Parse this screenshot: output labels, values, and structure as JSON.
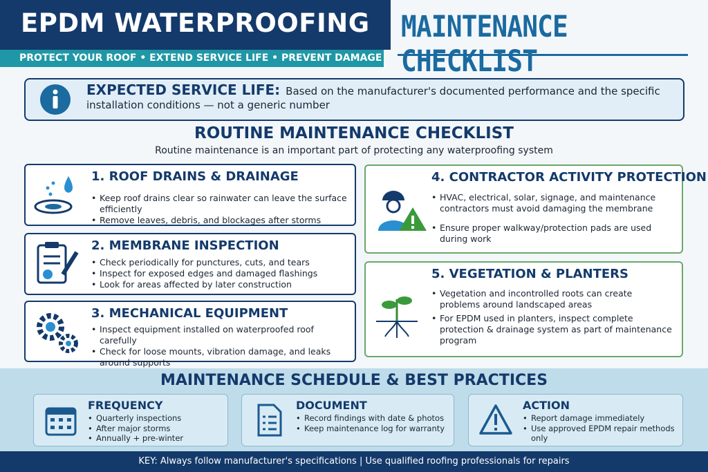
{
  "header": {
    "title": "EPDM WATERPROOFING",
    "subtitle": "PROTECT YOUR ROOF • EXTEND SERVICE LIFE • PREVENT DAMAGE",
    "title_right": "MAINTENANCE CHECKLIST"
  },
  "info": {
    "label": "EXPECTED SERVICE LIFE:",
    "text": "Based on the manufacturer's documented performance and the specific installation conditions — not a generic number"
  },
  "section": {
    "title": "ROUTINE MAINTENANCE CHECKLIST",
    "subtitle": "Routine maintenance is an important part of protecting any waterproofing system"
  },
  "cards": [
    {
      "title": "1. ROOF DRAINS & DRAINAGE",
      "bullets": [
        "Keep roof drains clear so rainwater can leave the surface efficiently",
        "Remove leaves, debris, and blockages after storms"
      ]
    },
    {
      "title": "2. MEMBRANE INSPECTION",
      "bullets": [
        "Check periodically for punctures, cuts, and tears",
        "Inspect for exposed edges and damaged flashings",
        "Look for areas affected by later construction"
      ]
    },
    {
      "title": "3. MECHANICAL EQUIPMENT",
      "bullets": [
        "Inspect equipment installed on waterproofed roof carefully",
        "Check for loose mounts, vibration damage, and leaks around supports"
      ]
    },
    {
      "title": "4. CONTRACTOR ACTIVITY PROTECTION",
      "bullets": [
        "HVAC, electrical, solar, signage, and maintenance contractors must avoid damaging the membrane",
        "Ensure proper walkway/protection pads are used during work"
      ]
    },
    {
      "title": "5. VEGETATION & PLANTERS",
      "bullets": [
        "Vegetation and incontrolled roots can create problems around landscaped areas",
        "For EPDM used in planters, inspect complete protection & drainage system as part of maintenance program"
      ]
    }
  ],
  "schedule": {
    "title": "MAINTENANCE SCHEDULE & BEST PRACTICES",
    "items": [
      {
        "title": "FREQUENCY",
        "bullets": [
          "Quarterly inspections",
          "After major storms",
          "Annually + pre-winter"
        ]
      },
      {
        "title": "DOCUMENT",
        "bullets": [
          "Record findings with date & photos",
          "Keep maintenance log for warranty"
        ]
      },
      {
        "title": "ACTION",
        "bullets": [
          "Report damage immediately",
          "Use approved EPDM repair methods only"
        ]
      }
    ]
  },
  "footer": {
    "text": "KEY: Always follow manufacturer's specifications | Use qualified roofing professionals for repairs"
  }
}
